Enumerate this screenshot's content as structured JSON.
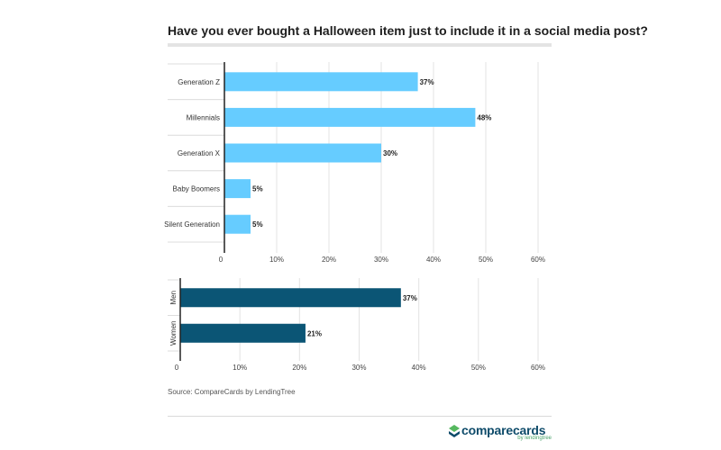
{
  "title": "Have you ever bought a Halloween item just to include it in a social media post?",
  "source": "Source: CompareCards by LendingTree",
  "logo": {
    "name": "comparecards",
    "sub": "by lendingtree"
  },
  "chart_data": [
    {
      "type": "bar",
      "orientation": "horizontal",
      "categories": [
        "Generation Z",
        "Millennials",
        "Generation X",
        "Baby Boomers",
        "Silent Generation"
      ],
      "values": [
        37,
        48,
        30,
        5,
        5
      ],
      "value_labels": [
        "37%",
        "48%",
        "30%",
        "5%",
        "5%"
      ],
      "xlim": [
        0,
        60
      ],
      "xticks": [
        0,
        10,
        20,
        30,
        40,
        50,
        60
      ],
      "xtick_labels": [
        "0",
        "10%",
        "20%",
        "30%",
        "40%",
        "50%",
        "60%"
      ],
      "grid": true,
      "bar_color": "#66ccff"
    },
    {
      "type": "bar",
      "orientation": "horizontal",
      "categories": [
        "Men",
        "Women"
      ],
      "values": [
        37,
        21
      ],
      "value_labels": [
        "37%",
        "21%"
      ],
      "xlim": [
        0,
        60
      ],
      "xticks": [
        0,
        10,
        20,
        30,
        40,
        50,
        60
      ],
      "xtick_labels": [
        "0",
        "10%",
        "20%",
        "30%",
        "40%",
        "50%",
        "60%"
      ],
      "grid": true,
      "category_labels_rotated": true,
      "bar_color": "#0b5575"
    }
  ]
}
